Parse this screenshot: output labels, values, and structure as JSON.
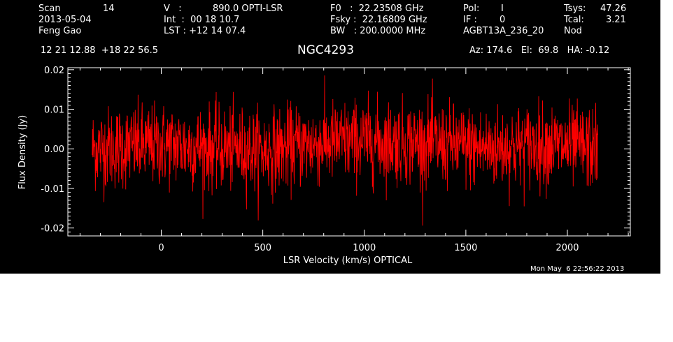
{
  "header": {
    "col1": {
      "l1": "Scan",
      "v1": "14",
      "l2": "2013-05-04",
      "l3": "Feng Gao"
    },
    "col2": {
      "l1": "V   :",
      "v1": "890.0 OPTI-LSR",
      "l2": "Int  :  00 18 10.7",
      "l3": "LST : +12 14 07.4"
    },
    "col3": {
      "l1": "F0   :  22.23508 GHz",
      "l2": "Fsky :  22.16809 GHz",
      "l3": "BW   : 200.0000 MHz"
    },
    "col4": {
      "l1": "Pol:",
      "v1": "I",
      "l2": "IF :",
      "v2": "0",
      "l3": "AGBT13A_236_20"
    },
    "col5": {
      "l1": "Tsys:",
      "v1": "47.26",
      "l2": "Tcal:",
      "v2": "3.21",
      "l3": "Nod"
    },
    "coords": "12 21 12.88  +18 22 56.5",
    "source": "NGC4293",
    "azel": "Az: 174.6   El:  69.8   HA: -0.12",
    "timestamp": "Mon May  6 22:56:22 2013"
  },
  "chart_data": {
    "type": "line",
    "title": "NGC4293",
    "xlabel": "LSR Velocity (km/s) OPTICAL",
    "ylabel": "Flux Density (Jy)",
    "xlim": [
      -460,
      2310
    ],
    "ylim": [
      -0.022,
      0.0205
    ],
    "x_ticks": [
      0,
      500,
      1000,
      1500,
      2000
    ],
    "x_tick_labels": [
      "0",
      "500",
      "1000",
      "1500",
      "2000"
    ],
    "y_ticks": [
      0.02,
      0.01,
      0.0,
      -0.01,
      -0.02
    ],
    "y_tick_labels": [
      "0.02",
      "0.01",
      "0.00",
      "-0.01",
      "-0.02"
    ],
    "grid": false,
    "series": [
      {
        "color": "#ff0000",
        "x_start": -340,
        "x_end": 2150,
        "noise_rms": 0.0052,
        "baseline": [
          [
            -340,
            0.0
          ],
          [
            0,
            0.001
          ],
          [
            500,
            -0.0005
          ],
          [
            800,
            0.0015
          ],
          [
            1000,
            0.002
          ],
          [
            1300,
            0.0015
          ],
          [
            1600,
            0.0
          ],
          [
            1900,
            0.001
          ],
          [
            2150,
            0.0
          ]
        ]
      }
    ]
  }
}
